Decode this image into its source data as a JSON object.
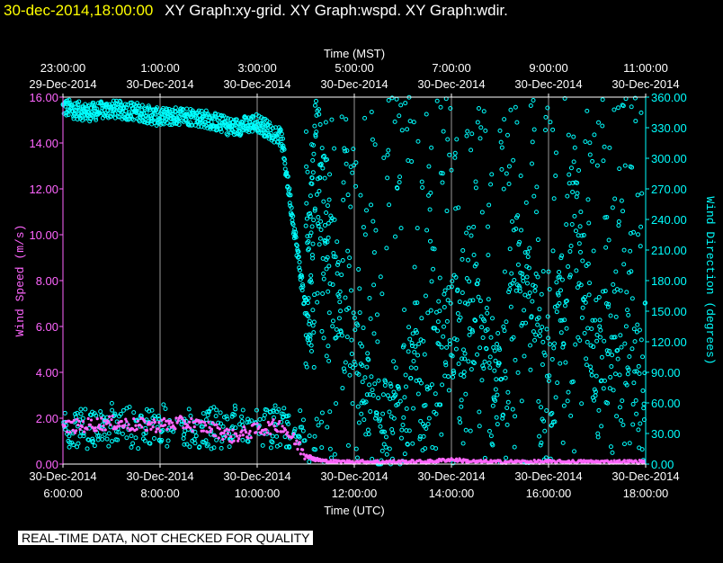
{
  "header": {
    "timestamp": "30-dec-2014,18:00:00",
    "graphs": "XY Graph:xy-grid.  XY Graph:wspd.  XY Graph:wdir."
  },
  "disclaimer": "REAL-TIME DATA, NOT CHECKED FOR QUALITY",
  "colors": {
    "speed": "#ff66ff",
    "direction": "#00ffff",
    "grid": "#ffffff",
    "background": "#000000"
  },
  "chart_data": {
    "type": "scatter",
    "top_axis": {
      "label": "Time (MST)",
      "ticks": [
        {
          "time": "23:00:00",
          "date": "29-Dec-2014"
        },
        {
          "time": "1:00:00",
          "date": "30-Dec-2014"
        },
        {
          "time": "3:00:00",
          "date": "30-Dec-2014"
        },
        {
          "time": "5:00:00",
          "date": "30-Dec-2014"
        },
        {
          "time": "7:00:00",
          "date": "30-Dec-2014"
        },
        {
          "time": "9:00:00",
          "date": "30-Dec-2014"
        },
        {
          "time": "11:00:00",
          "date": "30-Dec-2014"
        }
      ]
    },
    "bottom_axis": {
      "label": "Time (UTC)",
      "ticks": [
        {
          "date": "30-Dec-2014",
          "time": "6:00:00"
        },
        {
          "date": "30-Dec-2014",
          "time": "8:00:00"
        },
        {
          "date": "30-Dec-2014",
          "time": "10:00:00"
        },
        {
          "date": "30-Dec-2014",
          "time": "12:00:00"
        },
        {
          "date": "30-Dec-2014",
          "time": "14:00:00"
        },
        {
          "date": "30-Dec-2014",
          "time": "16:00:00"
        },
        {
          "date": "30-Dec-2014",
          "time": "18:00:00"
        }
      ],
      "xlim": [
        6,
        18
      ]
    },
    "left_axis": {
      "label": "Wind Speed (m/s)",
      "ylim": [
        0,
        16
      ],
      "ticks": [
        "0.00",
        "2.00",
        "4.00",
        "6.00",
        "8.00",
        "10.00",
        "12.00",
        "14.00",
        "16.00"
      ]
    },
    "right_axis": {
      "label": "Wind Direction (degrees)",
      "ylim": [
        0,
        360
      ],
      "ticks": [
        "0.00",
        "30.00",
        "60.00",
        "90.00",
        "120.00",
        "150.00",
        "180.00",
        "210.00",
        "240.00",
        "270.00",
        "300.00",
        "330.00",
        "360.00"
      ]
    },
    "grid": "vertical lines at bottom-axis ticks",
    "series": [
      {
        "axis": "left",
        "x": [
          6.0,
          6.5,
          7.0,
          7.5,
          8.0,
          8.5,
          9.0,
          9.5,
          10.0,
          10.5,
          11.0,
          11.2,
          11.5,
          12.0,
          12.5,
          13.0,
          13.5,
          14.0,
          14.5,
          15.0,
          15.5,
          16.0,
          16.5,
          17.0,
          17.5,
          18.0
        ],
        "y": [
          1.6,
          1.7,
          1.8,
          1.7,
          1.7,
          1.8,
          1.6,
          1.2,
          1.5,
          1.7,
          0.4,
          0.2,
          0.1,
          0.1,
          0.1,
          0.1,
          0.1,
          0.2,
          0.1,
          0.1,
          0.1,
          0.1,
          0.1,
          0.1,
          0.1,
          0.1
        ]
      },
      {
        "axis": "right",
        "x": [
          6.0,
          6.5,
          7.0,
          7.5,
          8.0,
          8.5,
          9.0,
          9.5,
          10.0,
          10.5,
          11.0,
          11.2,
          11.5,
          12.0,
          12.5,
          13.0,
          13.5,
          14.0,
          14.5,
          15.0,
          15.5,
          16.0,
          16.5,
          17.0,
          17.5,
          18.0
        ],
        "y": [
          350,
          345,
          348,
          346,
          340,
          342,
          338,
          330,
          335,
          320,
          150,
          300,
          200,
          100,
          30,
          60,
          90,
          120,
          150,
          60,
          200,
          50,
          250,
          80,
          150,
          40
        ]
      }
    ]
  }
}
